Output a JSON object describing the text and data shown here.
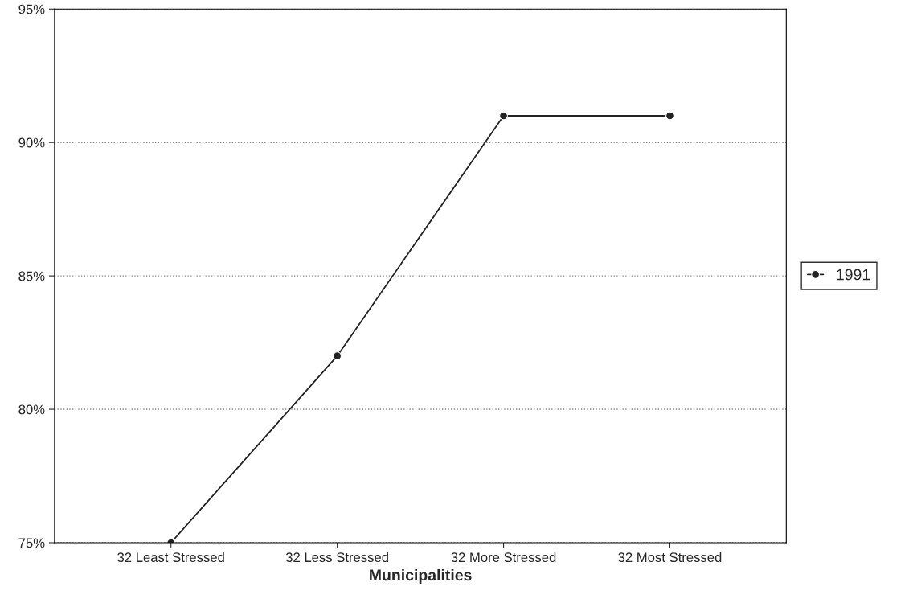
{
  "chart_data": {
    "type": "line",
    "xlabel": "Municipalities",
    "categories": [
      "32 Least Stressed",
      "32 Less Stressed",
      "32 More Stressed",
      "32 Most Stressed"
    ],
    "series": [
      {
        "name": "1991",
        "color": "#222222",
        "values": [
          75,
          82,
          91,
          91
        ]
      }
    ],
    "ylim": [
      75,
      95
    ],
    "yticks": [
      {
        "value": 75,
        "label": "75%"
      },
      {
        "value": 80,
        "label": "80%"
      },
      {
        "value": 85,
        "label": "85%"
      },
      {
        "value": 90,
        "label": "90%"
      },
      {
        "value": 95,
        "label": "95%"
      }
    ],
    "grid": "y",
    "legend": "right",
    "marker": "circle",
    "line_style": "solid"
  }
}
